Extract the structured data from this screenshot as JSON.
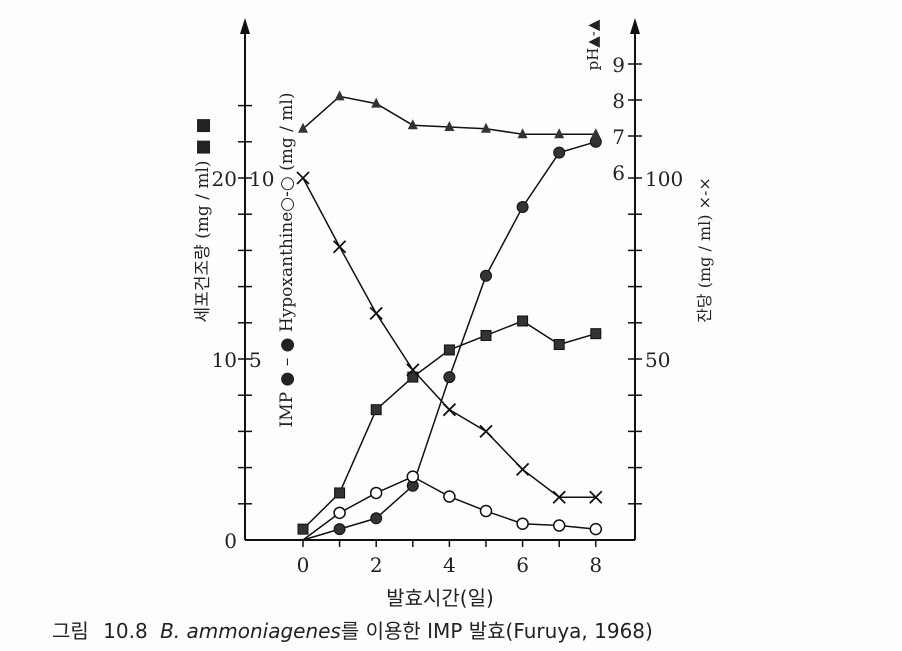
{
  "chart_data": {
    "type": "line",
    "title": "",
    "caption": {
      "prefix": "그림",
      "number": "10.8",
      "organism": "B. ammoniagenes",
      "rest": "를 이용한 IMP 발효(Furuya, 1968)"
    },
    "xlabel": "발효시간(일)",
    "x": [
      0,
      1,
      2,
      3,
      4,
      5,
      6,
      7,
      8
    ],
    "xticks": [
      "0",
      "2",
      "4",
      "6",
      "8"
    ],
    "xlim": [
      0,
      8
    ],
    "axes": {
      "left_outer": {
        "label": "세포건조량 (mg / ml) ■ ■",
        "ticks": [
          "0",
          "10",
          "20"
        ],
        "ylim": [
          0,
          24
        ]
      },
      "left_inner": {
        "label": "IMP ● – ● Hypoxanthine○-○ (mg / ml)",
        "ticks": [
          "5",
          "10"
        ],
        "ylim": [
          0,
          12
        ]
      },
      "right_ph": {
        "label": "pH▲-▲",
        "ticks": [
          "6",
          "7",
          "8",
          "9"
        ],
        "ylim": [
          6,
          10
        ]
      },
      "right_sugar": {
        "label": "잔당 (mg / ml) ×-×",
        "ticks": [
          "50",
          "100"
        ],
        "ylim": [
          0,
          100
        ]
      }
    },
    "series": [
      {
        "name": "세포건조량",
        "marker": "square",
        "axis": "left_outer",
        "values": [
          0.6,
          2.6,
          7.2,
          9.0,
          10.5,
          11.3,
          12.1,
          10.8,
          11.4
        ]
      },
      {
        "name": "IMP",
        "marker": "filled-circle",
        "axis": "left_inner",
        "values": [
          0,
          0.3,
          0.6,
          1.5,
          4.5,
          7.3,
          9.2,
          10.7,
          11.0
        ]
      },
      {
        "name": "Hypoxanthine",
        "marker": "open-circle",
        "axis": "left_inner",
        "values": [
          0,
          0.75,
          1.3,
          1.75,
          1.2,
          0.8,
          0.45,
          0.4,
          0.3
        ]
      },
      {
        "name": "pH",
        "marker": "triangle",
        "axis": "right_ph",
        "values": [
          7.2,
          8.1,
          7.9,
          7.3,
          7.25,
          7.2,
          7.05,
          7.05,
          7.05
        ]
      },
      {
        "name": "잔당",
        "marker": "cross",
        "axis": "right_sugar",
        "values": [
          100,
          81,
          62.6,
          47,
          36,
          30,
          19.5,
          11.8,
          11.8
        ]
      }
    ],
    "grid": false
  }
}
